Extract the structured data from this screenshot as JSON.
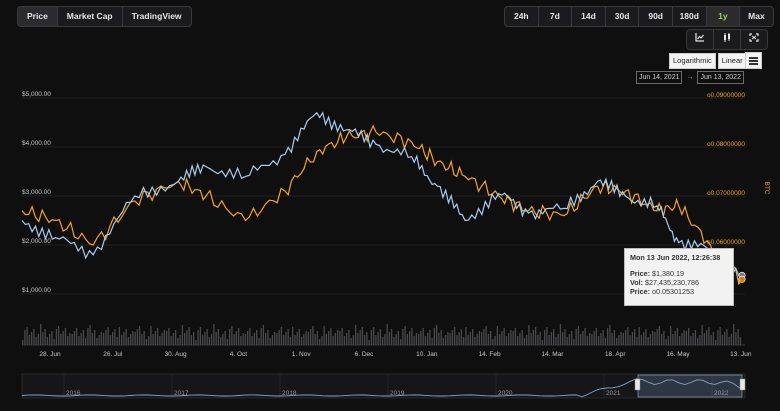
{
  "tabs": [
    {
      "label": "Price",
      "active": true
    },
    {
      "label": "Market Cap",
      "active": false
    },
    {
      "label": "TradingView",
      "active": false
    }
  ],
  "ranges": [
    "24h",
    "7d",
    "14d",
    "30d",
    "90d",
    "180d",
    "1y",
    "Max"
  ],
  "range_selected": "1y",
  "tools": [
    {
      "icon": "line-chart-icon",
      "glyph": "└"
    },
    {
      "icon": "candlestick-icon",
      "glyph": "❙❙"
    },
    {
      "icon": "fullscreen-icon",
      "glyph": "⤢"
    }
  ],
  "scale": {
    "log_label": "Logarithmic",
    "linear_label": "Linear"
  },
  "date_range": {
    "from": "Jun 14, 2021",
    "arrow": "→",
    "to": "Jun 13, 2022"
  },
  "colors": {
    "usd_series": "#a8cdf0",
    "btc_series": "#f7a22a",
    "background": "#0f0f10"
  },
  "chart_data": {
    "type": "line",
    "y_left_ticks": [
      "$5,000.00",
      "$4,000.00",
      "$3,000.00",
      "$2,000.00",
      "$1,000.00"
    ],
    "y_left_range": [
      0,
      5000
    ],
    "y_right_ticks": [
      "ο0.09000000",
      "ο0.08000000",
      "ο0.07000000",
      "ο0.06000000"
    ],
    "y_right_label": "BTC",
    "x_ticks": [
      "28. Jun",
      "26. Jul",
      "30. Aug",
      "4. Oct",
      "1. Nov",
      "6. Dec",
      "10. Jan",
      "14. Feb",
      "14. Mar",
      "18. Apr",
      "16. May",
      "13. Jun"
    ],
    "x": [
      "2021-06-14",
      "2021-07-01",
      "2021-07-20",
      "2021-08-10",
      "2021-09-01",
      "2021-09-15",
      "2021-10-05",
      "2021-10-25",
      "2021-11-10",
      "2021-11-25",
      "2021-12-10",
      "2021-12-28",
      "2022-01-10",
      "2022-01-24",
      "2022-02-10",
      "2022-02-25",
      "2022-03-15",
      "2022-04-01",
      "2022-04-15",
      "2022-05-01",
      "2022-05-12",
      "2022-05-28",
      "2022-06-13"
    ],
    "series": [
      {
        "axis": "usd",
        "values": [
          2500,
          2150,
          1800,
          3000,
          3300,
          3600,
          3400,
          3850,
          4700,
          4350,
          4050,
          3800,
          3200,
          2500,
          3050,
          2650,
          2750,
          3300,
          3000,
          2800,
          2050,
          1900,
          1380
        ]
      },
      {
        "axis": "btc",
        "values": [
          0.067,
          0.065,
          0.06,
          0.069,
          0.073,
          0.07,
          0.065,
          0.071,
          0.079,
          0.082,
          0.083,
          0.081,
          0.077,
          0.074,
          0.07,
          0.067,
          0.066,
          0.072,
          0.071,
          0.067,
          0.068,
          0.06,
          0.053
        ]
      }
    ],
    "volume_note": "volume bars",
    "navigator_years": [
      "2016",
      "2017",
      "2018",
      "2019",
      "2020",
      "2021",
      "2022"
    ]
  },
  "tooltip": {
    "title": "Mon 13 Jun 2022, 12:26:38",
    "price_label": "Price:",
    "price_value": "$1,380.19",
    "vol_label": "Vol:",
    "vol_value": "$27,435,230,786",
    "price_btc_label": "Price:",
    "price_btc_value": "ο0.05301253"
  }
}
